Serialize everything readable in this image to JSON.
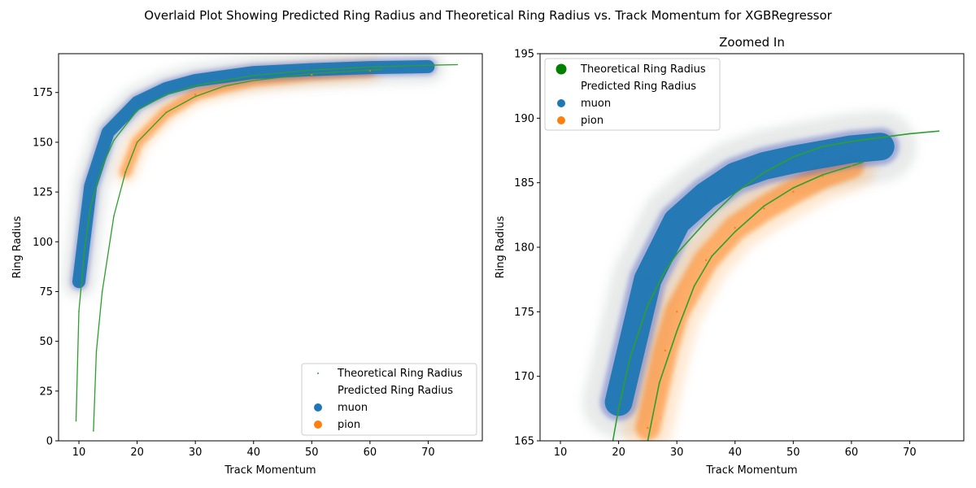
{
  "figure_title": "Overlaid Plot Showing Predicted Ring Radius and Theoretical Ring Radius vs. Track Momentum for XGBRegressor",
  "colors": {
    "muon": "#1f77b4",
    "pion": "#ff7f0e",
    "theoretical": "#2ca02c",
    "theoretical_legend": "#008000"
  },
  "chart_data": [
    {
      "type": "scatter",
      "title": "",
      "xlabel": "Track Momentum",
      "ylabel": "Ring Radius",
      "xlim": [
        6.5,
        79.3
      ],
      "ylim": [
        0,
        194.5
      ],
      "xticks": [
        10,
        20,
        30,
        40,
        50,
        60,
        70
      ],
      "yticks": [
        0,
        25,
        50,
        75,
        100,
        125,
        150,
        175
      ],
      "legend": {
        "placement": "lower-right",
        "entries": [
          "Theoretical Ring Radius",
          "Predicted Ring Radius",
          "muon",
          "pion"
        ]
      },
      "series": [
        {
          "name": "muon",
          "role": "predicted",
          "color": "#1f77b4",
          "x": [
            10,
            12,
            15,
            20,
            25,
            30,
            40,
            50,
            60,
            70
          ],
          "y": [
            80,
            128,
            155,
            170,
            177,
            181,
            185,
            186.5,
            187.5,
            188
          ]
        },
        {
          "name": "pion",
          "role": "predicted",
          "color": "#ff7f0e",
          "x": [
            18,
            20,
            25,
            30,
            35,
            40,
            50,
            60
          ],
          "y": [
            135,
            150,
            165,
            174,
            178,
            181,
            184,
            186
          ]
        },
        {
          "name": "Theoretical Ring Radius",
          "role": "theoretical_muon",
          "color": "#2ca02c",
          "x": [
            9.5,
            10,
            11,
            12,
            14,
            16,
            20,
            25,
            30,
            40,
            50,
            60,
            70,
            75
          ],
          "y": [
            10,
            65,
            97,
            118,
            138,
            151,
            166,
            174,
            178.5,
            183.5,
            186.3,
            187.8,
            188.7,
            189
          ]
        },
        {
          "name": "Theoretical Ring Radius",
          "role": "theoretical_pion",
          "color": "#2ca02c",
          "x": [
            12.5,
            13,
            14,
            16,
            18,
            20,
            25,
            30,
            35,
            40,
            50,
            60,
            62
          ],
          "y": [
            5,
            45,
            75,
            113,
            135,
            150,
            165,
            173,
            178.2,
            181,
            184.5,
            186.3,
            186.6
          ]
        }
      ]
    },
    {
      "type": "scatter",
      "title": "Zoomed In",
      "xlabel": "Track Momentum",
      "ylabel": "Ring Radius",
      "xlim": [
        6.5,
        79.3
      ],
      "ylim": [
        165,
        195
      ],
      "xticks": [
        10,
        20,
        30,
        40,
        50,
        60,
        70
      ],
      "yticks": [
        165,
        170,
        175,
        180,
        185,
        190,
        195
      ],
      "legend": {
        "placement": "upper-left",
        "entries": [
          "Theoretical Ring Radius",
          "Predicted Ring Radius",
          "muon",
          "pion"
        ]
      },
      "series": [
        {
          "name": "muon",
          "role": "predicted",
          "color": "#1f77b4",
          "x": [
            20,
            25,
            30,
            35,
            40,
            45,
            50,
            55,
            60,
            65
          ],
          "y": [
            168,
            177.5,
            182,
            184,
            185.5,
            186.3,
            186.8,
            187.2,
            187.6,
            187.8
          ]
        },
        {
          "name": "pion",
          "role": "predicted",
          "color": "#ff7f0e",
          "x": [
            25,
            28,
            30,
            35,
            40,
            45,
            50,
            55,
            60
          ],
          "y": [
            166,
            172,
            175,
            179,
            181.5,
            183,
            184.3,
            185.5,
            186.3
          ]
        },
        {
          "name": "Theoretical Ring Radius",
          "role": "theoretical_muon",
          "color": "#2ca02c",
          "x": [
            19,
            20,
            22,
            25,
            28,
            30,
            35,
            40,
            45,
            50,
            55,
            60,
            65,
            70,
            75
          ],
          "y": [
            165,
            167.5,
            171.5,
            175.5,
            178.2,
            179.5,
            182,
            184.2,
            185.8,
            187,
            187.8,
            188.2,
            188.5,
            188.8,
            189
          ]
        },
        {
          "name": "Theoretical Ring Radius",
          "role": "theoretical_pion",
          "color": "#2ca02c",
          "x": [
            25,
            27,
            30,
            33,
            36,
            40,
            45,
            50,
            55,
            60,
            62
          ],
          "y": [
            165,
            169.5,
            173.5,
            177,
            179.3,
            181.2,
            183.2,
            184.6,
            185.6,
            186.3,
            186.6
          ]
        }
      ]
    }
  ]
}
